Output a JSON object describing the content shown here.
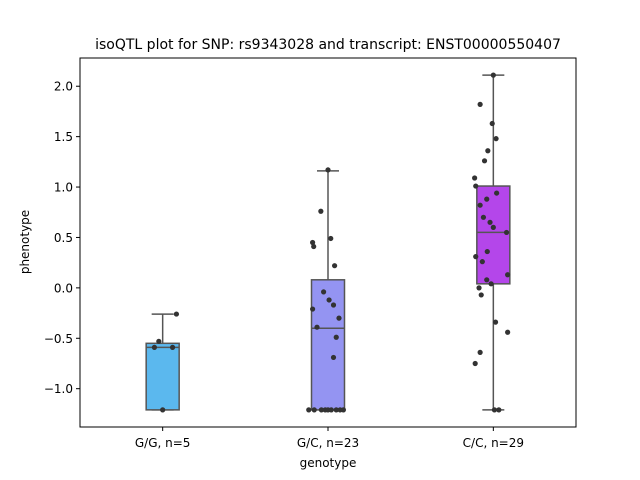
{
  "chart_data": {
    "type": "box",
    "title": "isoQTL plot for SNP: rs9343028 and transcript: ENST00000550407",
    "xlabel": "genotype",
    "ylabel": "phenotype",
    "ylim": [
      -1.38,
      2.28
    ],
    "yticks": [
      -1.0,
      -0.5,
      0.0,
      0.5,
      1.0,
      1.5,
      2.0
    ],
    "ytick_labels": [
      "−1.0",
      "−0.5",
      "0.0",
      "0.5",
      "1.0",
      "1.5",
      "2.0"
    ],
    "grid": false,
    "legend": "none",
    "categories": [
      "G/G, n=5",
      "G/C, n=23",
      "C/C, n=29"
    ],
    "colors": [
      "#5bb8ee",
      "#9494f2",
      "#b446ea"
    ],
    "point_color": "#333333",
    "box_line_color": "#555555",
    "boxes": [
      {
        "whisker_low": -1.21,
        "q1": -1.21,
        "median": -0.59,
        "q3": -0.55,
        "whisker_high": -0.26
      },
      {
        "whisker_low": -1.21,
        "q1": -1.21,
        "median": -0.4,
        "q3": 0.08,
        "whisker_high": 1.16
      },
      {
        "whisker_low": -1.21,
        "q1": 0.04,
        "median": 0.55,
        "q3": 1.01,
        "whisker_high": 2.11
      }
    ],
    "points": [
      [
        {
          "x": 0.0,
          "y": -1.21
        },
        {
          "x": -0.15,
          "y": -0.59
        },
        {
          "x": -0.07,
          "y": -0.53
        },
        {
          "x": 0.25,
          "y": -0.26
        },
        {
          "x": 0.18,
          "y": -0.59
        }
      ],
      [
        {
          "x": 0.0,
          "y": 1.17
        },
        {
          "x": -0.13,
          "y": 0.76
        },
        {
          "x": -0.28,
          "y": 0.45
        },
        {
          "x": -0.26,
          "y": 0.41
        },
        {
          "x": 0.05,
          "y": 0.49
        },
        {
          "x": 0.12,
          "y": 0.22
        },
        {
          "x": -0.08,
          "y": -0.04
        },
        {
          "x": 0.02,
          "y": -0.12
        },
        {
          "x": 0.1,
          "y": -0.17
        },
        {
          "x": -0.28,
          "y": -0.21
        },
        {
          "x": 0.2,
          "y": -0.3
        },
        {
          "x": -0.2,
          "y": -0.39
        },
        {
          "x": 0.15,
          "y": -0.49
        },
        {
          "x": 0.1,
          "y": -0.69
        },
        {
          "x": -0.35,
          "y": -1.21
        },
        {
          "x": -0.25,
          "y": -1.21
        },
        {
          "x": -0.12,
          "y": -1.21
        },
        {
          "x": -0.05,
          "y": -1.21
        },
        {
          "x": 0.0,
          "y": -1.21
        },
        {
          "x": 0.06,
          "y": -1.21
        },
        {
          "x": 0.15,
          "y": -1.21
        },
        {
          "x": 0.22,
          "y": -1.21
        },
        {
          "x": 0.28,
          "y": -1.21
        }
      ],
      [
        {
          "x": 0.0,
          "y": 2.11
        },
        {
          "x": -0.24,
          "y": 1.82
        },
        {
          "x": -0.02,
          "y": 1.63
        },
        {
          "x": 0.05,
          "y": 1.48
        },
        {
          "x": -0.1,
          "y": 1.36
        },
        {
          "x": -0.16,
          "y": 1.26
        },
        {
          "x": -0.34,
          "y": 1.09
        },
        {
          "x": -0.32,
          "y": 1.01
        },
        {
          "x": 0.06,
          "y": 0.94
        },
        {
          "x": -0.12,
          "y": 0.88
        },
        {
          "x": -0.24,
          "y": 0.82
        },
        {
          "x": -0.18,
          "y": 0.7
        },
        {
          "x": -0.06,
          "y": 0.65
        },
        {
          "x": 0.0,
          "y": 0.6
        },
        {
          "x": 0.24,
          "y": 0.55
        },
        {
          "x": -0.32,
          "y": 0.31
        },
        {
          "x": -0.11,
          "y": 0.36
        },
        {
          "x": -0.2,
          "y": 0.26
        },
        {
          "x": 0.26,
          "y": 0.13
        },
        {
          "x": -0.12,
          "y": 0.08
        },
        {
          "x": -0.04,
          "y": 0.04
        },
        {
          "x": -0.26,
          "y": 0.0
        },
        {
          "x": -0.22,
          "y": -0.07
        },
        {
          "x": 0.04,
          "y": -0.34
        },
        {
          "x": 0.26,
          "y": -0.44
        },
        {
          "x": -0.24,
          "y": -0.64
        },
        {
          "x": -0.33,
          "y": -0.75
        },
        {
          "x": 0.1,
          "y": -1.21
        },
        {
          "x": 0.02,
          "y": -1.21
        }
      ]
    ]
  }
}
